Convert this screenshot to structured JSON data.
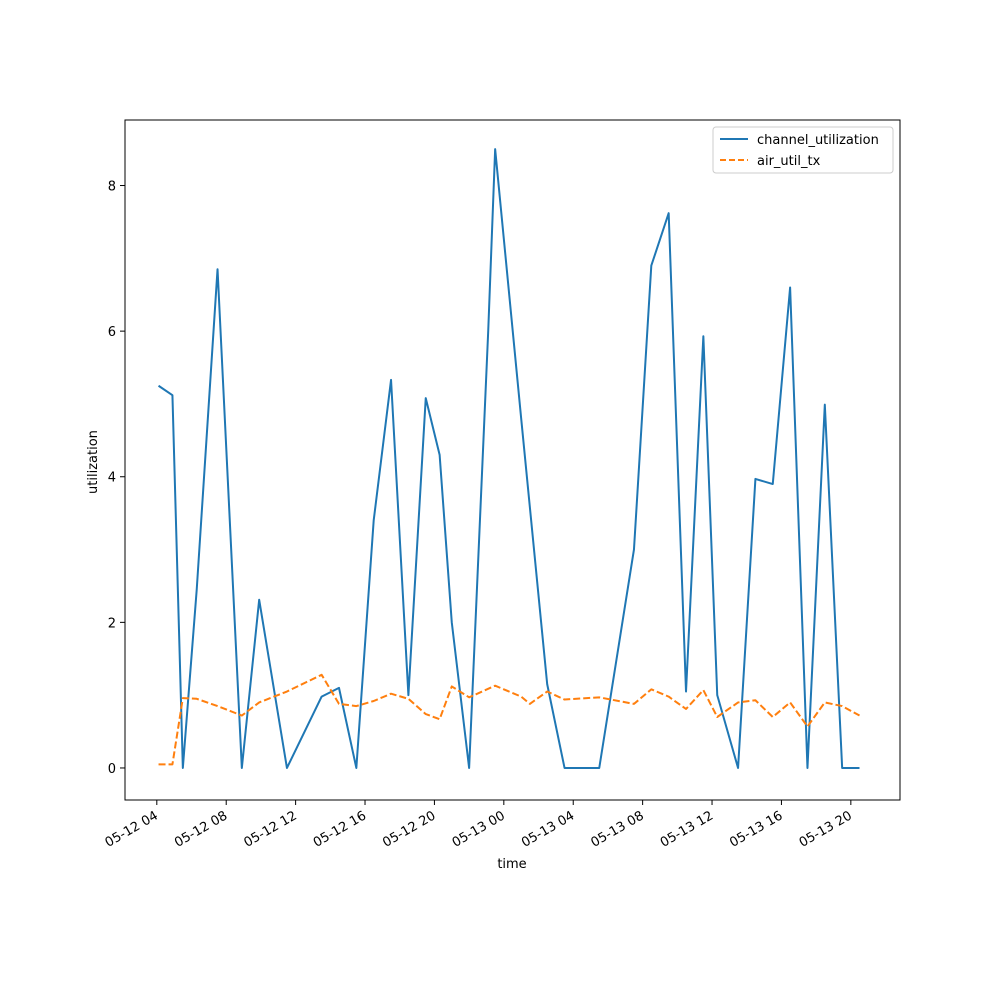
{
  "chart_data": {
    "type": "line",
    "title": "",
    "xlabel": "time",
    "ylabel": "utilization",
    "x_tick_labels": [
      "05-12 04",
      "05-12 08",
      "05-12 12",
      "05-12 16",
      "05-12 20",
      "05-13 00",
      "05-13 04",
      "05-13 08",
      "05-13 12",
      "05-13 16",
      "05-13 20"
    ],
    "y_tick_labels": [
      "0",
      "2",
      "4",
      "6",
      "8"
    ],
    "xlim": [
      "2024-05-12 02:10",
      "2024-05-13 22:50"
    ],
    "ylim": [
      -0.44,
      8.9
    ],
    "grid": false,
    "legend_position": "top-right",
    "series": [
      {
        "name": "channel_utilization",
        "color": "#1f77b4",
        "linestyle": "solid",
        "points": [
          [
            "2024-05-12 04:06",
            5.25
          ],
          [
            "2024-05-12 04:54",
            5.12
          ],
          [
            "2024-05-12 05:30",
            0.0
          ],
          [
            "2024-05-12 06:18",
            2.45
          ],
          [
            "2024-05-12 07:30",
            6.85
          ],
          [
            "2024-05-12 08:54",
            0.0
          ],
          [
            "2024-05-12 09:54",
            2.31
          ],
          [
            "2024-05-12 11:30",
            0.0
          ],
          [
            "2024-05-12 13:30",
            0.98
          ],
          [
            "2024-05-12 14:30",
            1.1
          ],
          [
            "2024-05-12 15:30",
            0.0
          ],
          [
            "2024-05-12 16:30",
            3.4
          ],
          [
            "2024-05-12 17:30",
            5.33
          ],
          [
            "2024-05-12 18:30",
            1.0
          ],
          [
            "2024-05-12 19:30",
            5.08
          ],
          [
            "2024-05-12 20:18",
            4.3
          ],
          [
            "2024-05-12 21:00",
            2.0
          ],
          [
            "2024-05-12 22:00",
            0.0
          ],
          [
            "2024-05-12 23:06",
            6.0
          ],
          [
            "2024-05-12 23:30",
            8.5
          ],
          [
            "2024-05-13 01:00",
            4.8
          ],
          [
            "2024-05-13 02:30",
            1.15
          ],
          [
            "2024-05-13 03:30",
            0.0
          ],
          [
            "2024-05-13 05:30",
            0.0
          ],
          [
            "2024-05-13 07:30",
            3.0
          ],
          [
            "2024-05-13 08:30",
            6.9
          ],
          [
            "2024-05-13 09:30",
            7.62
          ],
          [
            "2024-05-13 10:30",
            1.05
          ],
          [
            "2024-05-13 11:30",
            5.93
          ],
          [
            "2024-05-13 12:18",
            1.0
          ],
          [
            "2024-05-13 13:30",
            0.0
          ],
          [
            "2024-05-13 14:30",
            3.97
          ],
          [
            "2024-05-13 15:30",
            3.9
          ],
          [
            "2024-05-13 16:30",
            6.6
          ],
          [
            "2024-05-13 17:30",
            0.0
          ],
          [
            "2024-05-13 18:30",
            4.99
          ],
          [
            "2024-05-13 19:30",
            0.0
          ],
          [
            "2024-05-13 20:30",
            0.0
          ]
        ]
      },
      {
        "name": "air_util_tx",
        "color": "#ff7f0e",
        "linestyle": "dashed",
        "points": [
          [
            "2024-05-12 04:06",
            0.05
          ],
          [
            "2024-05-12 04:54",
            0.05
          ],
          [
            "2024-05-12 05:30",
            0.96
          ],
          [
            "2024-05-12 06:18",
            0.95
          ],
          [
            "2024-05-12 07:30",
            0.85
          ],
          [
            "2024-05-12 08:54",
            0.72
          ],
          [
            "2024-05-12 09:54",
            0.9
          ],
          [
            "2024-05-12 11:30",
            1.05
          ],
          [
            "2024-05-12 13:30",
            1.28
          ],
          [
            "2024-05-12 14:30",
            0.88
          ],
          [
            "2024-05-12 15:30",
            0.85
          ],
          [
            "2024-05-12 16:30",
            0.92
          ],
          [
            "2024-05-12 17:30",
            1.02
          ],
          [
            "2024-05-12 18:30",
            0.95
          ],
          [
            "2024-05-12 19:30",
            0.74
          ],
          [
            "2024-05-12 20:18",
            0.67
          ],
          [
            "2024-05-12 21:00",
            1.12
          ],
          [
            "2024-05-12 22:00",
            0.97
          ],
          [
            "2024-05-12 23:30",
            1.13
          ],
          [
            "2024-05-13 01:00",
            0.98
          ],
          [
            "2024-05-13 01:30",
            0.88
          ],
          [
            "2024-05-13 02:30",
            1.05
          ],
          [
            "2024-05-13 03:30",
            0.94
          ],
          [
            "2024-05-13 05:30",
            0.97
          ],
          [
            "2024-05-13 07:30",
            0.88
          ],
          [
            "2024-05-13 08:30",
            1.08
          ],
          [
            "2024-05-13 09:30",
            0.98
          ],
          [
            "2024-05-13 10:30",
            0.81
          ],
          [
            "2024-05-13 11:30",
            1.07
          ],
          [
            "2024-05-13 12:18",
            0.7
          ],
          [
            "2024-05-13 13:30",
            0.9
          ],
          [
            "2024-05-13 14:30",
            0.93
          ],
          [
            "2024-05-13 15:30",
            0.7
          ],
          [
            "2024-05-13 16:30",
            0.9
          ],
          [
            "2024-05-13 17:30",
            0.57
          ],
          [
            "2024-05-13 18:30",
            0.9
          ],
          [
            "2024-05-13 19:30",
            0.85
          ],
          [
            "2024-05-13 20:30",
            0.72
          ]
        ]
      }
    ]
  }
}
